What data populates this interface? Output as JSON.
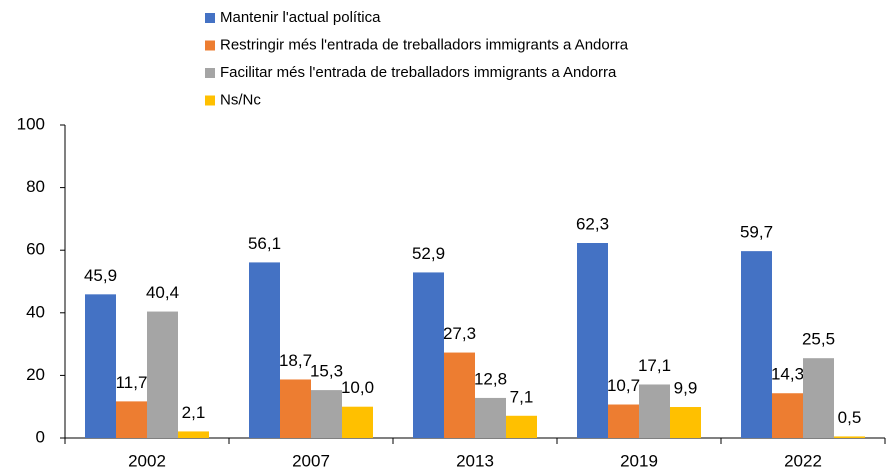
{
  "chart_data": {
    "type": "bar",
    "categories": [
      "2002",
      "2007",
      "2013",
      "2019",
      "2022"
    ],
    "series": [
      {
        "name": "Mantenir l'actual política",
        "color": "#4472c4",
        "values": [
          45.9,
          56.1,
          52.9,
          62.3,
          59.7
        ],
        "value_labels": [
          "45,9",
          "56,1",
          "52,9",
          "62,3",
          "59,7"
        ]
      },
      {
        "name": "Restringir més l'entrada de treballadors immigrants a Andorra",
        "color": "#ed7d31",
        "values": [
          11.7,
          18.7,
          27.3,
          10.7,
          14.3
        ],
        "value_labels": [
          "11,7",
          "18,7",
          "27,3",
          "10,7",
          "14,3"
        ]
      },
      {
        "name": "Facilitar més l'entrada de treballadors immigrants a Andorra",
        "color": "#a5a5a5",
        "values": [
          40.4,
          15.3,
          12.8,
          17.1,
          25.5
        ],
        "value_labels": [
          "40,4",
          "15,3",
          "12,8",
          "17,1",
          "25,5"
        ]
      },
      {
        "name": "Ns/Nc",
        "color": "#ffc000",
        "values": [
          2.1,
          10.0,
          7.1,
          9.9,
          0.5
        ],
        "value_labels": [
          "2,1",
          "10,0",
          "7,1",
          "9,9",
          "0,5"
        ]
      }
    ],
    "ylim": [
      0,
      100
    ],
    "yticks": [
      0,
      20,
      40,
      60,
      80,
      100
    ],
    "grid": false,
    "legend": "top"
  }
}
